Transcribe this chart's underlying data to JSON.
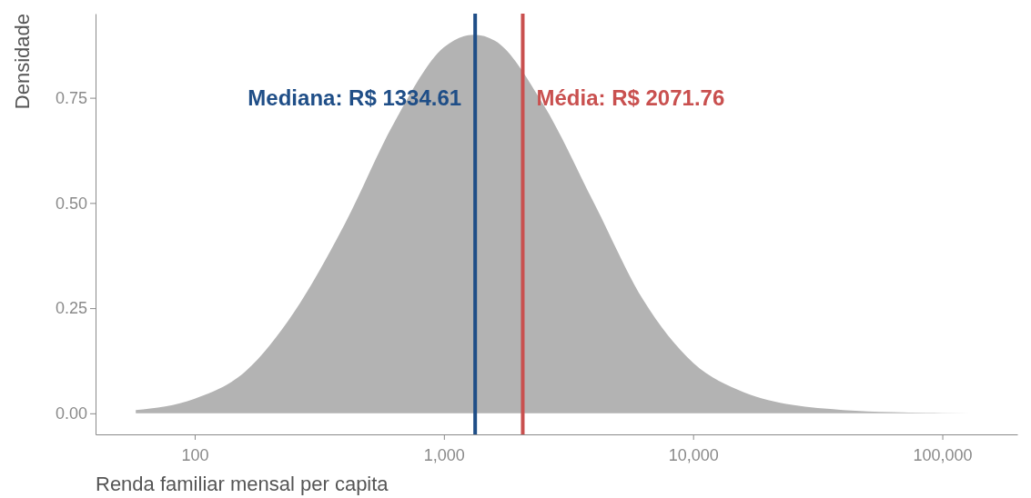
{
  "chart_data": {
    "type": "area",
    "xlabel": "Renda familiar mensal per capita",
    "ylabel": "Densidade",
    "log": "x",
    "xlim": [
      40,
      200000
    ],
    "ylim": [
      -0.05,
      0.95
    ],
    "xticks": [
      {
        "value": 100,
        "label": "100"
      },
      {
        "value": 1000,
        "label": "1,000"
      },
      {
        "value": 10000,
        "label": "10,000"
      },
      {
        "value": 100000,
        "label": "100,000"
      }
    ],
    "yticks": [
      {
        "value": 0,
        "label": "0.00"
      },
      {
        "value": 0.25,
        "label": "0.25"
      },
      {
        "value": 0.5,
        "label": "0.50"
      },
      {
        "value": 0.75,
        "label": "0.75"
      }
    ],
    "grid": false,
    "series": [
      {
        "color": "#b3b3b3",
        "x": [
          58,
          100,
          160,
          250,
          400,
          630,
          1000,
          1320,
          1600,
          2500,
          4000,
          6300,
          10000,
          16000,
          25000,
          40000,
          63000,
          100000,
          170000
        ],
        "values": [
          0.008,
          0.035,
          0.1,
          0.24,
          0.45,
          0.69,
          0.87,
          0.9,
          0.886,
          0.735,
          0.5,
          0.27,
          0.12,
          0.05,
          0.02,
          0.008,
          0.003,
          0.001,
          0
        ]
      }
    ],
    "ref_lines": [
      {
        "axis": "x",
        "value": 1334.61,
        "label": "Mediana: R$ 1334.61",
        "color": "#1f4e87"
      },
      {
        "axis": "x",
        "value": 2071.76,
        "label": "Média: R$ 2071.76",
        "color": "#c9504f"
      }
    ]
  }
}
